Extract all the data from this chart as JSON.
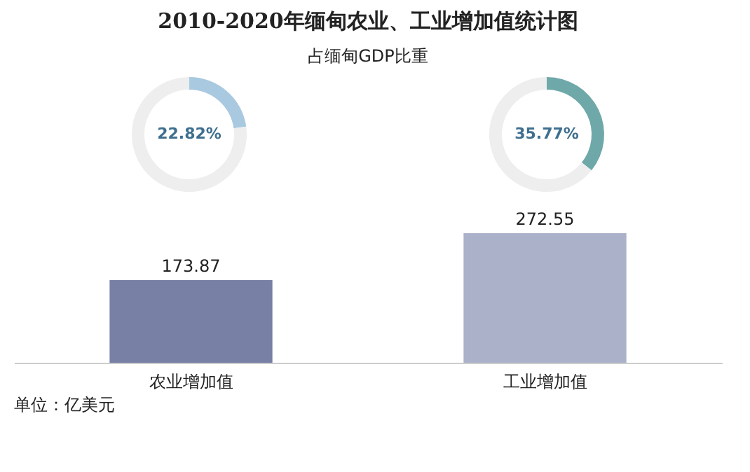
{
  "chart_data": [
    {
      "type": "donut",
      "title": "2010-2020年缅甸农业、工业增加值统计图",
      "subtitle": "占缅甸GDP比重",
      "categories": [
        null,
        null
      ],
      "values": [
        22.82,
        77.18
      ],
      "colors": [
        "#a9c9e0",
        "#eeeeee"
      ],
      "annotations": [
        "22.82%"
      ]
    },
    {
      "type": "donut",
      "categories": [
        null,
        null
      ],
      "values": [
        35.77,
        64.23
      ],
      "colors": [
        "#6fa8a8",
        "#eeeeee"
      ],
      "annotations": [
        "35.77%"
      ]
    },
    {
      "type": "bar",
      "categories": [
        "农业增加值",
        "工业增加值"
      ],
      "values": [
        173.87,
        272.55
      ],
      "colors": [
        "#7880a6",
        "#abb1c9"
      ],
      "data_labels": true,
      "tick_labels": "x",
      "annotations": [
        "单位：亿美元"
      ]
    }
  ]
}
